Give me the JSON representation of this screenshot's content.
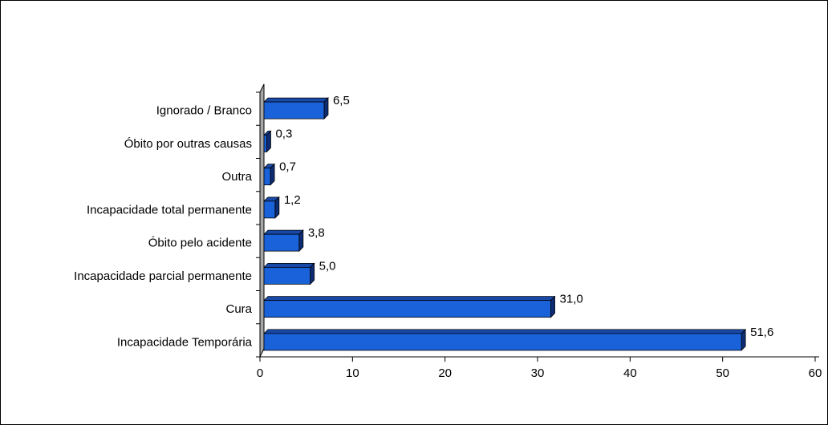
{
  "chart_data": {
    "type": "bar",
    "orientation": "horizontal",
    "style": "3d",
    "categories": [
      "Ignorado / Branco",
      "Óbito por outras causas",
      "Outra",
      "Incapacidade total permanente",
      "Óbito pelo acidente",
      "Incapacidade parcial permanente",
      "Cura",
      "Incapacidade Temporária"
    ],
    "values": [
      6.5,
      0.3,
      0.7,
      1.2,
      3.8,
      5.0,
      31.0,
      51.6
    ],
    "value_labels": [
      "6,5",
      "0,3",
      "0,7",
      "1,2",
      "3,8",
      "5,0",
      "31,0",
      "51,6"
    ],
    "xticks": [
      "0",
      "10",
      "20",
      "30",
      "40",
      "50",
      "60"
    ],
    "xlim": [
      0,
      60
    ],
    "title": "",
    "xlabel": "",
    "ylabel": "",
    "grid": false,
    "legend": "none",
    "colors": {
      "bar_front": "#1a62d9",
      "bar_top": "#1849a8",
      "bar_side": "#0e2c73",
      "bar_outline": "#000000",
      "wall": "#a6a6a6",
      "frame": "#000000"
    }
  }
}
